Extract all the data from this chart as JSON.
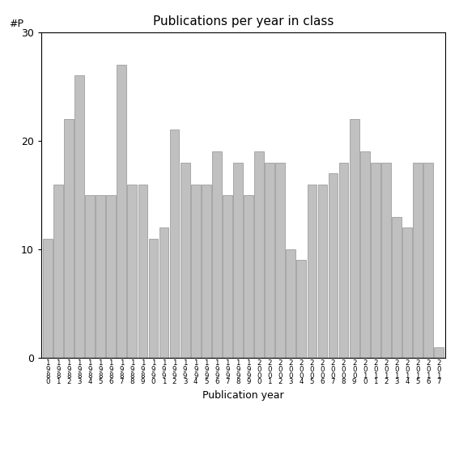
{
  "years": [
    1980,
    1981,
    1982,
    1983,
    1984,
    1985,
    1986,
    1987,
    1988,
    1989,
    1990,
    1991,
    1992,
    1993,
    1994,
    1995,
    1996,
    1997,
    1998,
    1999,
    2000,
    2001,
    2002,
    2003,
    2004,
    2005,
    2006,
    2007,
    2008,
    2009,
    2010,
    2011,
    2012,
    2013,
    2014,
    2015,
    2016,
    2017
  ],
  "values": [
    11,
    16,
    22,
    26,
    15,
    15,
    15,
    27,
    16,
    16,
    11,
    12,
    21,
    18,
    16,
    16,
    19,
    15,
    18,
    15,
    19,
    18,
    18,
    10,
    9,
    16,
    16,
    17,
    18,
    22,
    19,
    18,
    18,
    13,
    12,
    18,
    18,
    1
  ],
  "title": "Publications per year in class",
  "ylabel": "#P",
  "xlabel": "Publication year",
  "bar_color": "#c0c0c0",
  "bar_edge_color": "#909090",
  "ylim": [
    0,
    30
  ],
  "yticks": [
    0,
    10,
    20,
    30
  ],
  "background_color": "#ffffff",
  "title_fontsize": 11,
  "label_fontsize": 9,
  "tick_fontsize": 9
}
